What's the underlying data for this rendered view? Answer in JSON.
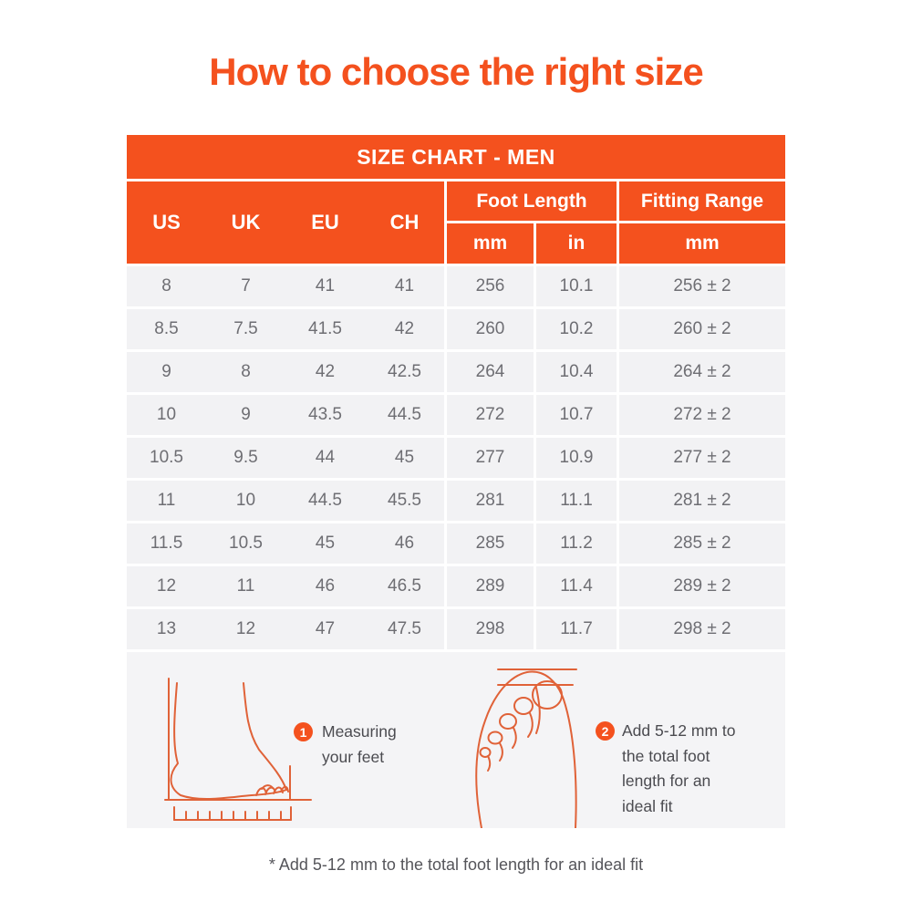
{
  "page": {
    "title": "How to choose the right size",
    "footnote": "* Add 5-12 mm to the total foot length for an ideal fit"
  },
  "colors": {
    "accent_orange": "#F4511E",
    "row_background": "#F2F2F4",
    "body_text": "#6E6E73",
    "illustration_stroke": "#E06238"
  },
  "size_chart": {
    "title": "SIZE CHART - MEN",
    "size_columns": [
      "US",
      "UK",
      "EU",
      "CH"
    ],
    "foot_length": {
      "label": "Foot Length",
      "sub": [
        "mm",
        "in"
      ]
    },
    "fitting_range": {
      "label": "Fitting Range",
      "sub": "mm"
    },
    "rows": [
      {
        "us": "8",
        "uk": "7",
        "eu": "41",
        "ch": "41",
        "mm": "256",
        "in": "10.1",
        "fit": "256 ± 2"
      },
      {
        "us": "8.5",
        "uk": "7.5",
        "eu": "41.5",
        "ch": "42",
        "mm": "260",
        "in": "10.2",
        "fit": "260 ± 2"
      },
      {
        "us": "9",
        "uk": "8",
        "eu": "42",
        "ch": "42.5",
        "mm": "264",
        "in": "10.4",
        "fit": "264 ± 2"
      },
      {
        "us": "10",
        "uk": "9",
        "eu": "43.5",
        "ch": "44.5",
        "mm": "272",
        "in": "10.7",
        "fit": "272 ± 2"
      },
      {
        "us": "10.5",
        "uk": "9.5",
        "eu": "44",
        "ch": "45",
        "mm": "277",
        "in": "10.9",
        "fit": "277 ± 2"
      },
      {
        "us": "11",
        "uk": "10",
        "eu": "44.5",
        "ch": "45.5",
        "mm": "281",
        "in": "11.1",
        "fit": "281 ± 2"
      },
      {
        "us": "11.5",
        "uk": "10.5",
        "eu": "45",
        "ch": "46",
        "mm": "285",
        "in": "11.2",
        "fit": "285 ± 2"
      },
      {
        "us": "12",
        "uk": "11",
        "eu": "46",
        "ch": "46.5",
        "mm": "289",
        "in": "11.4",
        "fit": "289 ± 2"
      },
      {
        "us": "13",
        "uk": "12",
        "eu": "47",
        "ch": "47.5",
        "mm": "298",
        "in": "11.7",
        "fit": "298 ± 2"
      }
    ]
  },
  "steps": [
    {
      "number": "1",
      "lines": [
        "Measuring",
        "your feet"
      ]
    },
    {
      "number": "2",
      "lines": [
        "Add 5-12 mm to",
        "the total foot",
        "length for an",
        "ideal fit"
      ]
    }
  ]
}
